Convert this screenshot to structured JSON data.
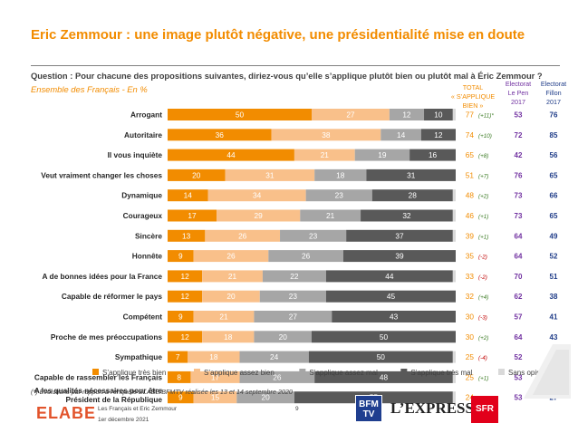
{
  "header": {
    "title": "Eric Zemmour : une image plutôt négative, une présidentialité mise en doute",
    "question": "Question : Pour chacune des propositions suivantes, diriez-vous qu’elle s’applique plutôt bien ou plutôt mal à Éric Zemmour ?",
    "scope": "Ensemble des Français - En %"
  },
  "columns": {
    "total": [
      "TOTAL",
      "« S’APPLIQUE",
      "BIEN »"
    ],
    "lepen": [
      "Electorat",
      "Le Pen",
      "2017"
    ],
    "fillon": [
      "Electorat",
      "Fillon",
      "2017"
    ]
  },
  "colors": {
    "tres_bien": "#f28c00",
    "assez_bien": "#f9c08a",
    "assez_mal": "#a6a6a6",
    "tres_mal": "#595959",
    "sans_opinion": "#d9d9d9",
    "total_text": "#f28c00",
    "diff_text": "#3a7a22",
    "diff_neg_text": "#c00000",
    "lepen_text": "#7030a0",
    "fillon_text": "#1f3c88"
  },
  "chart_data": {
    "type": "bar",
    "orientation": "horizontal",
    "stacked": true,
    "xlim": [
      0,
      100
    ],
    "categories": [
      "Arrogant",
      "Autoritaire",
      "Il vous inquiète",
      "Veut vraiment changer les choses",
      "Dynamique",
      "Courageux",
      "Sincère",
      "Honnête",
      "A de bonnes idées pour la France",
      "Capable de réformer le pays",
      "Compétent",
      "Proche de mes préoccupations",
      "Sympathique",
      "Capable de rassembler les Français",
      "A les qualités nécessaires pour être Président de la République"
    ],
    "series": [
      {
        "name": "S’applique très bien",
        "values": [
          50,
          36,
          44,
          20,
          14,
          17,
          13,
          9,
          12,
          12,
          9,
          12,
          7,
          8,
          9
        ]
      },
      {
        "name": "S’applique assez bien",
        "values": [
          27,
          38,
          21,
          31,
          34,
          29,
          26,
          26,
          21,
          20,
          21,
          18,
          18,
          17,
          15
        ]
      },
      {
        "name": "S’applique assez mal",
        "values": [
          12,
          14,
          19,
          18,
          23,
          21,
          23,
          26,
          22,
          23,
          27,
          20,
          24,
          26,
          20
        ]
      },
      {
        "name": "S’applique très mal",
        "values": [
          10,
          12,
          16,
          31,
          28,
          32,
          37,
          39,
          44,
          45,
          43,
          50,
          50,
          48,
          55
        ]
      },
      {
        "name": "Sans opinion",
        "values": [
          1,
          0,
          0,
          0,
          1,
          1,
          1,
          0,
          1,
          0,
          0,
          0,
          1,
          1,
          1
        ]
      }
    ],
    "total": [
      77,
      74,
      65,
      51,
      48,
      46,
      39,
      35,
      33,
      32,
      30,
      30,
      25,
      25,
      24
    ],
    "evolution": [
      "(+11)*",
      "(+10)",
      "(+8)",
      "(+7)",
      "(+2)",
      "(+1)",
      "(+1)",
      "(-2)",
      "(-2)",
      "(+4)",
      "(-3)",
      "(+2)",
      "(-4)",
      "(+1)",
      "(+1)"
    ],
    "lepen_2017": [
      53,
      72,
      42,
      76,
      73,
      73,
      64,
      64,
      70,
      62,
      57,
      64,
      52,
      53,
      53
    ],
    "fillon_2017": [
      76,
      85,
      56,
      65,
      66,
      65,
      49,
      52,
      51,
      38,
      41,
      43,
      37,
      28,
      27
    ],
    "legend_position": "bottom"
  },
  "footer": {
    "note": "(*) Evolutions par rapport à l’enquête ELABE/BFMTV réalisée les 13 et 14 septembre 2020",
    "logo": "ELABE",
    "survey": "Les Français et Eric Zemmour",
    "date": "1er décembre 2021",
    "page": "9",
    "bfm_line1": "BFM",
    "bfm_line2": "TV",
    "express": "L’EXPRESS",
    "sfr": "SFR"
  }
}
